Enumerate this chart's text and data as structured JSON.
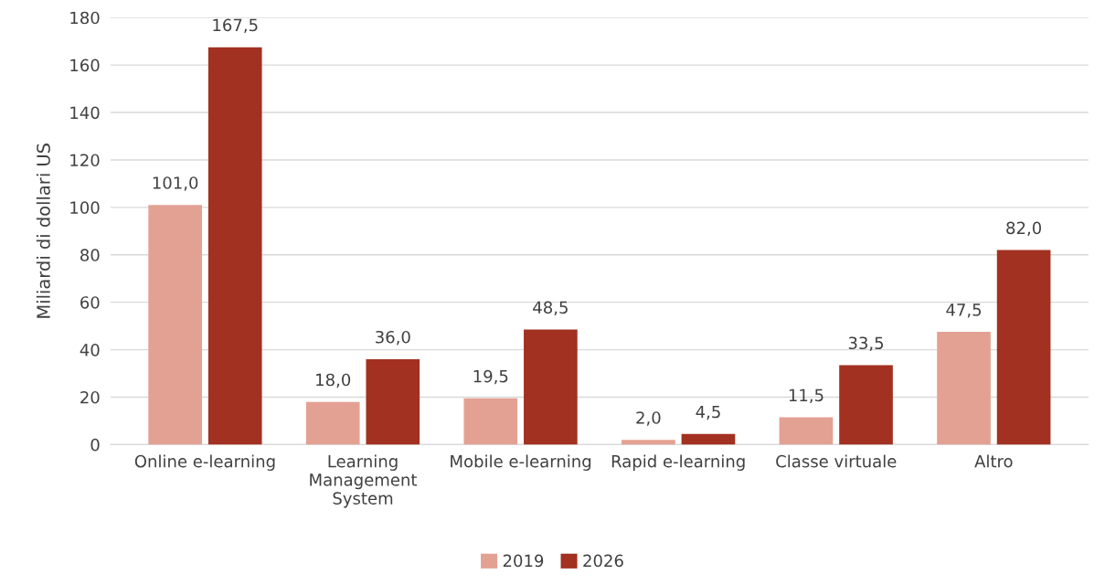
{
  "chart_data": {
    "type": "bar",
    "ylabel": "Miliardi di dollari US",
    "categories": [
      "Online e-learning",
      "Learning\nManagement\nSystem",
      "Mobile e-learning",
      "Rapid e-learning",
      "Classe virtuale",
      "Altro"
    ],
    "series": [
      {
        "name": "2019",
        "color": "#e3a194",
        "values": [
          101.0,
          18.0,
          19.5,
          2.0,
          11.5,
          47.5
        ],
        "value_labels": [
          "101,0",
          "18,0",
          "19,5",
          "2,0",
          "11,5",
          "47,5"
        ]
      },
      {
        "name": "2026",
        "color": "#a23121",
        "values": [
          167.5,
          36.0,
          48.5,
          4.5,
          33.5,
          82.0
        ],
        "value_labels": [
          "167,5",
          "36,0",
          "48,5",
          "4,5",
          "33,5",
          "82,0"
        ]
      }
    ],
    "ylim": [
      0,
      180
    ],
    "yticks": [
      0,
      20,
      40,
      60,
      80,
      100,
      120,
      140,
      160,
      180
    ],
    "grid": "y",
    "legend": "bottom"
  }
}
